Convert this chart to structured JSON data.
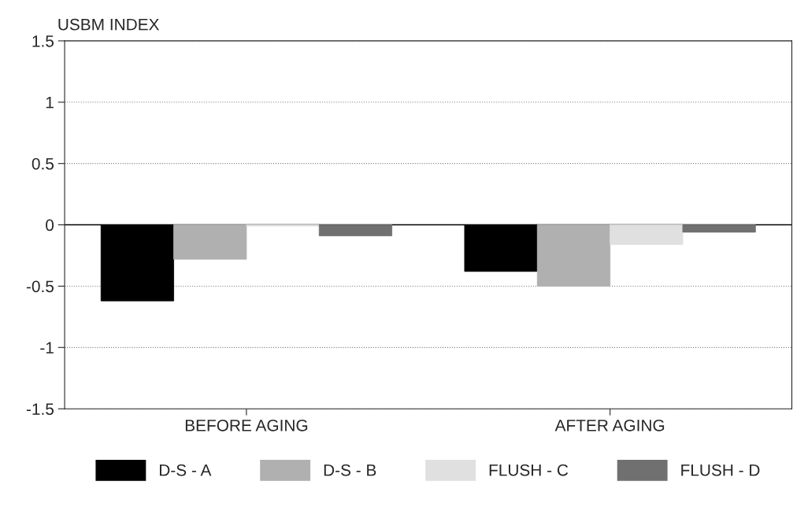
{
  "chart_data": {
    "type": "bar",
    "ylabel": "USBM INDEX",
    "categories": [
      "BEFORE AGING",
      "AFTER AGING"
    ],
    "series": [
      {
        "name": "D-S - A",
        "color": "#000000",
        "values": [
          -0.62,
          -0.38
        ]
      },
      {
        "name": "D-S - B",
        "color": "#b0b0b0",
        "values": [
          -0.28,
          -0.5
        ]
      },
      {
        "name": "FLUSH - C",
        "color": "#e0e0e0",
        "values": [
          -0.01,
          -0.16
        ]
      },
      {
        "name": "FLUSH - D",
        "color": "#707070",
        "values": [
          -0.09,
          -0.06
        ]
      }
    ],
    "ylim": [
      -1.5,
      1.5
    ],
    "yticks": [
      -1.5,
      -1,
      -0.5,
      0,
      0.5,
      1,
      1.5
    ],
    "grid": "y",
    "legend": "bottom"
  }
}
